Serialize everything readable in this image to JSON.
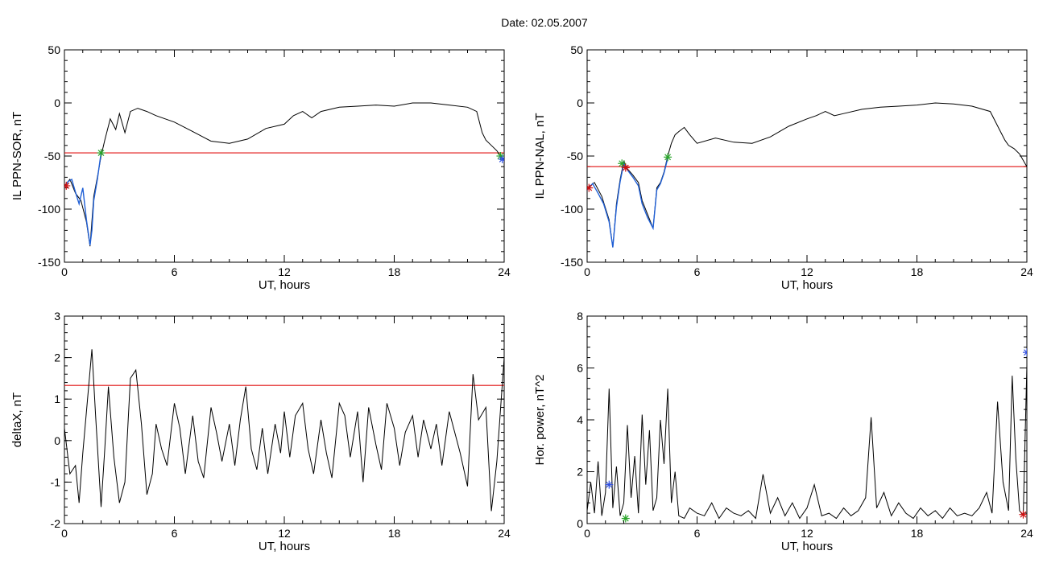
{
  "title": "Date:  02.05.2007",
  "chart_data": [
    {
      "type": "line",
      "xlabel": "UT, hours",
      "ylabel": "IL PPN-SOR, nT",
      "xlim": [
        0,
        24
      ],
      "ylim": [
        -150,
        50
      ],
      "xticks": [
        0,
        6,
        12,
        18,
        24
      ],
      "yticks": [
        -150,
        -100,
        -50,
        0,
        50
      ],
      "threshold": -47,
      "series": [
        {
          "color": "#000000",
          "x": [
            0,
            0.3,
            0.6,
            0.9,
            1.2,
            1.4,
            1.6,
            1.8,
            2.0,
            2.2,
            2.5,
            2.8,
            3.0,
            3.3,
            3.6,
            4.0,
            4.5,
            5,
            6,
            7,
            8,
            9,
            10,
            11,
            12,
            12.5,
            13,
            13.5,
            14,
            15,
            16,
            17,
            18,
            19,
            20,
            21,
            22,
            22.5,
            22.8,
            23.0,
            23.3,
            23.6,
            23.8,
            24
          ],
          "y": [
            -78,
            -72,
            -85,
            -92,
            -112,
            -135,
            -88,
            -70,
            -50,
            -35,
            -15,
            -25,
            -10,
            -28,
            -8,
            -5,
            -8,
            -12,
            -18,
            -27,
            -36,
            -38,
            -34,
            -24,
            -20,
            -12,
            -8,
            -14,
            -8,
            -4,
            -3,
            -2,
            -3,
            0,
            0,
            -2,
            -4,
            -8,
            -28,
            -35,
            -40,
            -45,
            -50,
            -53
          ]
        },
        {
          "color": "#1f5fd6",
          "x": [
            0,
            0.2,
            0.4,
            0.6,
            0.8,
            1.0,
            1.2,
            1.4,
            1.5,
            1.6,
            1.8,
            2.0
          ],
          "y": [
            -80,
            -74,
            -72,
            -84,
            -95,
            -80,
            -110,
            -134,
            -120,
            -92,
            -72,
            -47
          ]
        }
      ],
      "markers": [
        {
          "x": 0.1,
          "y": -78,
          "color": "#d01010"
        },
        {
          "x": 2.0,
          "y": -47,
          "color": "#2aa52a"
        },
        {
          "x": 23.8,
          "y": -50,
          "color": "#2aa52a"
        },
        {
          "x": 23.9,
          "y": -53,
          "color": "#3050e0"
        }
      ]
    },
    {
      "type": "line",
      "xlabel": "UT, hours",
      "ylabel": "IL PPN-NAL, nT",
      "xlim": [
        0,
        24
      ],
      "ylim": [
        -150,
        50
      ],
      "xticks": [
        0,
        6,
        12,
        18,
        24
      ],
      "yticks": [
        -150,
        -100,
        -50,
        0,
        50
      ],
      "threshold": -60,
      "series": [
        {
          "color": "#000000",
          "x": [
            0,
            0.4,
            0.8,
            1.2,
            1.4,
            1.6,
            1.8,
            2.0,
            2.2,
            2.5,
            2.8,
            3.0,
            3.3,
            3.6,
            3.8,
            4.0,
            4.2,
            4.4,
            4.6,
            4.8,
            5.0,
            5.3,
            5.6,
            6,
            7,
            8,
            9,
            10,
            11,
            12,
            12.5,
            13,
            13.5,
            14,
            15,
            16,
            17,
            18,
            19,
            20,
            21,
            22,
            22.5,
            22.8,
            23.0,
            23.3,
            23.6,
            24
          ],
          "y": [
            -80,
            -75,
            -88,
            -110,
            -136,
            -95,
            -72,
            -55,
            -62,
            -68,
            -75,
            -92,
            -105,
            -118,
            -80,
            -75,
            -65,
            -50,
            -38,
            -30,
            -27,
            -23,
            -30,
            -38,
            -33,
            -37,
            -38,
            -32,
            -22,
            -15,
            -12,
            -8,
            -12,
            -10,
            -6,
            -4,
            -3,
            -2,
            0,
            -1,
            -3,
            -8,
            -25,
            -35,
            -40,
            -43,
            -48,
            -60
          ]
        },
        {
          "color": "#1f5fd6",
          "x": [
            0,
            0.3,
            0.6,
            0.9,
            1.2,
            1.4,
            1.6,
            1.8,
            2.0,
            2.2,
            2.5,
            2.8,
            3.0,
            3.3,
            3.6,
            3.8,
            4.0,
            4.2,
            4.4
          ],
          "y": [
            -82,
            -76,
            -85,
            -95,
            -112,
            -136,
            -98,
            -74,
            -57,
            -63,
            -70,
            -78,
            -95,
            -108,
            -118,
            -82,
            -76,
            -66,
            -52
          ]
        }
      ],
      "markers": [
        {
          "x": 0.1,
          "y": -80,
          "color": "#d01010"
        },
        {
          "x": 1.9,
          "y": -57,
          "color": "#2aa52a"
        },
        {
          "x": 2.1,
          "y": -61,
          "color": "#d01010"
        },
        {
          "x": 4.4,
          "y": -51,
          "color": "#2aa52a"
        }
      ]
    },
    {
      "type": "line",
      "xlabel": "UT, hours",
      "ylabel": "deltaX, nT",
      "xlim": [
        0,
        24
      ],
      "ylim": [
        -2,
        3
      ],
      "xticks": [
        0,
        6,
        12,
        18,
        24
      ],
      "yticks": [
        -2,
        -1,
        0,
        1,
        2,
        3
      ],
      "threshold": 1.33,
      "series": [
        {
          "color": "#000000",
          "x": [
            0,
            0.3,
            0.6,
            0.8,
            1.0,
            1.3,
            1.5,
            1.7,
            2.0,
            2.2,
            2.4,
            2.7,
            3.0,
            3.3,
            3.6,
            3.9,
            4.2,
            4.5,
            4.8,
            5.0,
            5.3,
            5.6,
            6.0,
            6.3,
            6.6,
            7.0,
            7.3,
            7.6,
            8.0,
            8.3,
            8.6,
            9.0,
            9.3,
            9.6,
            9.9,
            10.2,
            10.5,
            10.8,
            11.1,
            11.5,
            11.8,
            12.0,
            12.3,
            12.6,
            13.0,
            13.3,
            13.6,
            14.0,
            14.3,
            14.6,
            15.0,
            15.3,
            15.6,
            16.0,
            16.3,
            16.6,
            17.0,
            17.3,
            17.6,
            18.0,
            18.3,
            18.6,
            19.0,
            19.3,
            19.6,
            20.0,
            20.3,
            20.6,
            21.0,
            21.3,
            21.6,
            22.0,
            22.3,
            22.6,
            23.0,
            23.3,
            23.6,
            24.0
          ],
          "y": [
            0.3,
            -0.8,
            -0.6,
            -1.5,
            -0.3,
            1.2,
            2.2,
            0.6,
            -1.6,
            -0.2,
            1.3,
            -0.4,
            -1.5,
            -1.0,
            1.5,
            1.7,
            0.4,
            -1.3,
            -0.8,
            0.4,
            -0.2,
            -0.6,
            0.9,
            0.3,
            -0.8,
            0.6,
            -0.5,
            -0.9,
            0.8,
            0.2,
            -0.5,
            0.4,
            -0.6,
            0.5,
            1.3,
            -0.2,
            -0.7,
            0.3,
            -0.8,
            0.4,
            -0.3,
            0.7,
            -0.4,
            0.6,
            0.9,
            -0.2,
            -0.8,
            0.5,
            -0.3,
            -0.9,
            0.9,
            0.6,
            -0.4,
            0.7,
            -1.0,
            0.8,
            -0.1,
            -0.7,
            0.9,
            0.3,
            -0.6,
            0.2,
            0.6,
            -0.4,
            0.5,
            -0.2,
            0.4,
            -0.6,
            0.7,
            0.2,
            -0.3,
            -1.1,
            1.6,
            0.5,
            0.8,
            -1.7,
            -0.5,
            2.0
          ]
        }
      ],
      "markers": []
    },
    {
      "type": "line",
      "xlabel": "UT, hours",
      "ylabel": "Hor. power, nT^2",
      "xlim": [
        0,
        24
      ],
      "ylim": [
        0,
        8
      ],
      "xticks": [
        0,
        6,
        12,
        18,
        24
      ],
      "yticks": [
        0,
        2,
        4,
        6,
        8
      ],
      "threshold": null,
      "series": [
        {
          "color": "#000000",
          "x": [
            0,
            0.2,
            0.4,
            0.6,
            0.8,
            1.0,
            1.2,
            1.4,
            1.6,
            1.8,
            2.0,
            2.2,
            2.4,
            2.6,
            2.8,
            3.0,
            3.2,
            3.4,
            3.6,
            3.8,
            4.0,
            4.2,
            4.4,
            4.6,
            4.8,
            5.0,
            5.3,
            5.6,
            6.0,
            6.4,
            6.8,
            7.2,
            7.6,
            8.0,
            8.4,
            8.8,
            9.2,
            9.6,
            10.0,
            10.4,
            10.8,
            11.2,
            11.6,
            12.0,
            12.4,
            12.8,
            13.2,
            13.6,
            14.0,
            14.4,
            14.8,
            15.2,
            15.5,
            15.8,
            16.2,
            16.6,
            17.0,
            17.4,
            17.8,
            18.2,
            18.6,
            19.0,
            19.4,
            19.8,
            20.2,
            20.6,
            21.0,
            21.4,
            21.8,
            22.1,
            22.4,
            22.7,
            23.0,
            23.2,
            23.4,
            23.6,
            23.8,
            24.0
          ],
          "y": [
            0.5,
            1.6,
            0.4,
            2.4,
            0.3,
            1.2,
            5.2,
            0.6,
            2.2,
            0.3,
            0.8,
            3.8,
            1.0,
            2.6,
            0.4,
            4.2,
            1.5,
            3.6,
            0.5,
            1.0,
            4.0,
            2.3,
            5.2,
            0.8,
            2.0,
            0.3,
            0.2,
            0.6,
            0.4,
            0.3,
            0.8,
            0.2,
            0.6,
            0.4,
            0.3,
            0.5,
            0.2,
            1.9,
            0.4,
            1.0,
            0.3,
            0.8,
            0.2,
            0.6,
            1.5,
            0.3,
            0.4,
            0.2,
            0.6,
            0.3,
            0.5,
            1.0,
            4.1,
            0.6,
            1.2,
            0.3,
            0.8,
            0.4,
            0.2,
            0.6,
            0.3,
            0.5,
            0.2,
            0.6,
            0.3,
            0.4,
            0.3,
            0.6,
            1.2,
            0.4,
            4.7,
            1.6,
            0.5,
            5.7,
            2.5,
            0.5,
            0.3,
            6.1
          ]
        }
      ],
      "markers": [
        {
          "x": 1.2,
          "y": 1.5,
          "color": "#3050e0"
        },
        {
          "x": 2.1,
          "y": 0.2,
          "color": "#2aa52a"
        },
        {
          "x": 23.8,
          "y": 0.35,
          "color": "#d01010"
        },
        {
          "x": 24.0,
          "y": 6.6,
          "color": "#3050e0"
        }
      ]
    }
  ]
}
